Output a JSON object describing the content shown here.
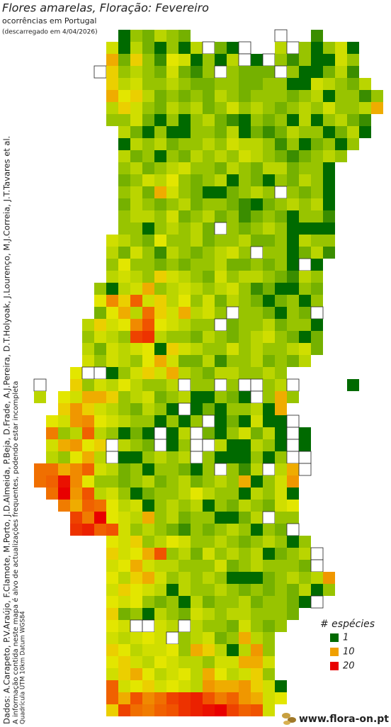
{
  "header": {
    "title": "Flores amarelas, Floração: Fevereiro",
    "subtitle": "ocorrências em Portugal",
    "note": "(descarregado em 4/04/2026)"
  },
  "side_notes": [
    "Dados: A.Carapeto, P.V.Araújo, F.Clamote, M.Porto, J.D.Almeida, P.Beja, D.Frade, A.J.Pereira, D.T.Holyoak, J.Lourenço, M.J.Correia, J.T.Tavares et al.",
    "A informação contida neste mapa é alvo de actualizações frequentes, podendo estar incompleta",
    "Quadrícula UTM 10km Datum WGS84"
  ],
  "legend": {
    "title": "# espécies",
    "items": [
      {
        "value": 1,
        "color": "#006a00"
      },
      {
        "value": 10,
        "color": "#f0a000"
      },
      {
        "value": 20,
        "color": "#e80000"
      }
    ]
  },
  "logo": "www.flora-on.pt",
  "map": {
    "rows": [
      [
        null,
        null,
        null,
        null,
        null,
        null,
        null,
        1,
        4,
        3,
        5,
        4,
        3,
        null,
        null,
        null,
        null,
        null,
        null,
        null,
        0,
        null,
        null,
        2
      ],
      [
        null,
        null,
        null,
        null,
        null,
        null,
        6,
        1,
        5,
        3,
        1,
        4,
        1,
        5,
        0,
        3,
        1,
        0,
        null,
        null,
        5,
        0,
        4,
        1,
        4,
        6,
        1
      ],
      [
        null,
        null,
        null,
        null,
        null,
        null,
        9,
        3,
        8,
        4,
        2,
        7,
        6,
        1,
        4,
        1,
        5,
        0,
        1,
        0,
        4,
        2,
        4,
        1,
        1,
        6,
        4
      ],
      [
        null,
        null,
        null,
        null,
        null,
        0,
        8,
        4,
        5,
        4,
        3,
        6,
        3,
        2,
        4,
        0,
        4,
        3,
        3,
        3,
        0,
        4,
        1,
        1,
        3,
        5,
        2
      ],
      [
        null,
        null,
        null,
        null,
        null,
        null,
        8,
        5,
        6,
        4,
        4,
        5,
        4,
        3,
        3,
        4,
        4,
        3,
        3,
        4,
        4,
        1,
        1,
        6,
        5,
        4,
        3,
        5
      ],
      [
        null,
        null,
        null,
        null,
        null,
        null,
        9,
        7,
        8,
        5,
        3,
        4,
        3,
        4,
        3,
        5,
        4,
        3,
        4,
        4,
        4,
        3,
        4,
        5,
        1,
        4,
        4,
        2,
        4
      ],
      [
        null,
        null,
        null,
        null,
        null,
        null,
        5,
        8,
        6,
        4,
        3,
        5,
        4,
        5,
        3,
        4,
        6,
        4,
        5,
        4,
        3,
        4,
        5,
        4,
        6,
        4,
        4,
        5,
        9
      ],
      [
        null,
        null,
        null,
        null,
        null,
        null,
        4,
        4,
        6,
        3,
        1,
        4,
        1,
        4,
        5,
        3,
        2,
        1,
        4,
        3,
        4,
        1,
        5,
        1,
        4,
        5,
        3,
        2
      ],
      [
        null,
        null,
        null,
        null,
        null,
        null,
        null,
        5,
        3,
        1,
        4,
        1,
        1,
        4,
        4,
        3,
        5,
        1,
        3,
        2,
        3,
        5,
        4,
        4,
        1,
        3,
        5,
        1
      ],
      [
        null,
        null,
        null,
        null,
        null,
        null,
        null,
        1,
        5,
        4,
        5,
        3,
        4,
        4,
        5,
        4,
        6,
        5,
        5,
        4,
        2,
        4,
        1,
        3,
        4,
        1,
        4
      ],
      [
        null,
        null,
        null,
        null,
        null,
        null,
        null,
        5,
        3,
        4,
        1,
        4,
        3,
        5,
        4,
        5,
        4,
        6,
        5,
        4,
        3,
        2,
        3,
        4,
        5,
        4
      ],
      [
        null,
        null,
        null,
        null,
        null,
        null,
        null,
        4,
        5,
        3,
        4,
        5,
        6,
        4,
        4,
        3,
        5,
        4,
        3,
        5,
        5,
        3,
        4,
        4,
        1
      ],
      [
        null,
        null,
        null,
        null,
        null,
        null,
        null,
        3,
        4,
        6,
        5,
        7,
        4,
        3,
        4,
        5,
        1,
        4,
        3,
        1,
        4,
        3,
        5,
        4,
        1
      ],
      [
        null,
        null,
        null,
        null,
        null,
        null,
        null,
        4,
        5,
        3,
        9,
        6,
        4,
        3,
        1,
        1,
        3,
        4,
        5,
        4,
        0,
        4,
        3,
        4,
        1
      ],
      [
        null,
        null,
        null,
        null,
        null,
        null,
        null,
        3,
        5,
        4,
        3,
        4,
        5,
        3,
        4,
        4,
        3,
        2,
        1,
        3,
        4,
        5,
        4,
        5,
        1
      ],
      [
        null,
        null,
        null,
        null,
        null,
        null,
        null,
        4,
        5,
        5,
        4,
        6,
        3,
        4,
        5,
        3,
        4,
        2,
        3,
        4,
        3,
        1,
        4,
        4,
        2
      ],
      [
        null,
        null,
        null,
        null,
        null,
        null,
        null,
        4,
        4,
        1,
        4,
        5,
        4,
        5,
        3,
        0,
        4,
        3,
        4,
        5,
        4,
        1,
        1,
        1,
        1
      ],
      [
        null,
        null,
        null,
        null,
        null,
        null,
        6,
        5,
        4,
        3,
        7,
        4,
        4,
        5,
        3,
        4,
        4,
        5,
        3,
        3,
        4,
        1,
        5,
        4,
        4
      ],
      [
        null,
        null,
        null,
        null,
        null,
        null,
        5,
        3,
        6,
        4,
        2,
        5,
        4,
        3,
        4,
        5,
        6,
        4,
        0,
        4,
        4,
        1,
        3,
        5,
        2
      ],
      [
        null,
        null,
        null,
        null,
        null,
        null,
        4,
        7,
        4,
        4,
        3,
        4,
        3,
        4,
        4,
        5,
        3,
        3,
        4,
        3,
        4,
        1,
        0,
        1
      ],
      [
        null,
        null,
        null,
        null,
        null,
        null,
        5,
        6,
        5,
        4,
        8,
        6,
        5,
        4,
        3,
        6,
        4,
        5,
        5,
        4,
        3,
        2,
        5,
        4
      ],
      [
        null,
        null,
        null,
        null,
        null,
        4,
        1,
        5,
        6,
        9,
        4,
        5,
        6,
        5,
        4,
        5,
        6,
        4,
        2,
        3,
        1,
        1,
        4,
        3
      ],
      [
        null,
        null,
        null,
        null,
        null,
        7,
        11,
        8,
        14,
        6,
        8,
        5,
        7,
        4,
        6,
        3,
        5,
        4,
        3,
        1,
        3,
        4,
        1,
        4
      ],
      [
        null,
        null,
        null,
        null,
        null,
        3,
        7,
        9,
        5,
        13,
        8,
        6,
        9,
        5,
        6,
        4,
        0,
        4,
        4,
        3,
        1,
        4,
        3,
        0
      ],
      [
        null,
        null,
        null,
        null,
        5,
        8,
        6,
        7,
        11,
        15,
        7,
        6,
        5,
        4,
        4,
        0,
        3,
        4,
        4,
        5,
        3,
        4,
        4,
        1
      ],
      [
        null,
        null,
        null,
        null,
        4,
        6,
        5,
        4,
        16,
        17,
        5,
        4,
        4,
        3,
        5,
        4,
        3,
        4,
        5,
        6,
        4,
        3,
        1,
        3
      ],
      [
        null,
        null,
        null,
        null,
        5,
        3,
        6,
        5,
        6,
        7,
        1,
        8,
        6,
        5,
        4,
        4,
        6,
        4,
        5,
        4,
        4,
        5,
        6,
        3
      ],
      [
        null,
        null,
        null,
        null,
        6,
        4,
        6,
        5,
        4,
        7,
        9,
        6,
        3,
        3,
        5,
        2,
        4,
        4,
        5,
        3,
        4,
        3,
        5
      ],
      [
        null,
        null,
        null,
        7,
        0,
        0,
        1,
        4,
        6,
        8,
        6,
        9,
        5,
        4,
        3,
        5,
        5,
        4,
        4,
        5,
        4
      ],
      [
        0,
        null,
        null,
        8,
        4,
        6,
        5,
        7,
        5,
        4,
        4,
        5,
        0,
        4,
        4,
        0,
        4,
        0,
        0,
        4,
        5,
        0,
        null,
        null,
        null,
        null,
        1
      ],
      [
        5,
        null,
        7,
        6,
        9,
        9,
        8,
        4,
        5,
        6,
        3,
        4,
        5,
        1,
        1,
        4,
        3,
        1,
        0,
        4,
        9,
        4
      ],
      [
        null,
        null,
        8,
        10,
        8,
        6,
        5,
        4,
        3,
        5,
        4,
        1,
        0,
        1,
        3,
        1,
        4,
        4,
        5,
        1,
        9
      ],
      [
        null,
        7,
        6,
        10,
        11,
        7,
        6,
        5,
        4,
        4,
        1,
        4,
        1,
        4,
        0,
        1,
        3,
        1,
        6,
        1,
        1,
        0
      ],
      [
        null,
        12,
        4,
        5,
        14,
        5,
        4,
        1,
        3,
        1,
        0,
        1,
        5,
        0,
        3,
        1,
        4,
        6,
        3,
        5,
        1,
        0,
        1
      ],
      [
        null,
        6,
        9,
        10,
        7,
        8,
        0,
        5,
        4,
        3,
        0,
        1,
        4,
        0,
        0,
        5,
        1,
        1,
        5,
        4,
        1,
        0,
        1
      ],
      [
        null,
        5,
        4,
        7,
        9,
        5,
        0,
        1,
        1,
        4,
        5,
        4,
        5,
        0,
        4,
        1,
        1,
        1,
        4,
        1,
        4,
        0,
        0
      ],
      [
        13,
        13,
        9,
        11,
        14,
        6,
        5,
        3,
        4,
        1,
        4,
        4,
        3,
        1,
        4,
        0,
        4,
        2,
        5,
        0,
        5,
        9,
        0
      ],
      [
        13,
        14,
        19,
        11,
        7,
        4,
        4,
        3,
        4,
        5,
        3,
        4,
        5,
        3,
        4,
        5,
        4,
        9,
        1,
        4,
        6,
        10
      ],
      [
        null,
        13,
        20,
        10,
        15,
        5,
        6,
        4,
        1,
        3,
        4,
        4,
        5,
        7,
        5,
        4,
        4,
        1,
        5,
        4,
        6,
        1
      ],
      [
        null,
        null,
        12,
        9,
        14,
        13,
        7,
        5,
        6,
        1,
        4,
        5,
        4,
        5,
        1,
        4,
        3,
        5,
        4,
        3,
        6,
        7
      ],
      [
        null,
        null,
        null,
        16,
        12,
        20,
        7,
        6,
        5,
        9,
        4,
        5,
        3,
        4,
        4,
        1,
        1,
        3,
        5,
        0,
        4,
        4
      ],
      [
        null,
        null,
        null,
        17,
        18,
        14,
        15,
        6,
        4,
        5,
        4,
        3,
        2,
        4,
        3,
        4,
        5,
        4,
        1,
        4,
        3,
        0
      ],
      [
        null,
        null,
        null,
        null,
        null,
        null,
        7,
        6,
        8,
        4,
        5,
        7,
        6,
        4,
        4,
        5,
        4,
        3,
        4,
        5,
        4,
        1,
        4
      ],
      [
        null,
        null,
        null,
        null,
        null,
        null,
        8,
        6,
        7,
        9,
        15,
        4,
        5,
        3,
        6,
        4,
        5,
        4,
        5,
        1,
        3,
        4,
        5,
        0
      ],
      [
        null,
        null,
        null,
        null,
        null,
        null,
        6,
        7,
        9,
        6,
        5,
        5,
        4,
        4,
        4,
        6,
        3,
        4,
        5,
        4,
        4,
        4,
        3,
        0
      ],
      [
        null,
        null,
        null,
        null,
        null,
        null,
        7,
        5,
        8,
        9,
        6,
        4,
        5,
        4,
        5,
        4,
        1,
        1,
        1,
        3,
        4,
        5,
        4,
        5,
        10
      ],
      [
        null,
        null,
        null,
        null,
        null,
        null,
        6,
        8,
        7,
        6,
        5,
        1,
        5,
        4,
        4,
        5,
        4,
        3,
        4,
        3,
        4,
        3,
        5,
        1,
        4
      ],
      [
        null,
        null,
        null,
        null,
        null,
        null,
        7,
        6,
        7,
        4,
        3,
        4,
        1,
        5,
        3,
        4,
        4,
        5,
        3,
        4,
        4,
        3,
        1,
        0
      ],
      [
        null,
        null,
        null,
        null,
        null,
        null,
        8,
        3,
        4,
        1,
        5,
        4,
        3,
        6,
        5,
        4,
        5,
        5,
        4,
        4,
        4,
        3
      ],
      [
        null,
        null,
        null,
        null,
        null,
        null,
        7,
        6,
        0,
        0,
        6,
        5,
        0,
        5,
        4,
        4,
        3,
        6,
        4,
        3,
        4
      ],
      [
        null,
        null,
        null,
        null,
        null,
        null,
        6,
        5,
        6,
        7,
        6,
        0,
        4,
        5,
        6,
        3,
        4,
        9,
        5,
        4
      ],
      [
        null,
        null,
        null,
        null,
        null,
        null,
        8,
        7,
        5,
        6,
        6,
        7,
        4,
        9,
        8,
        5,
        1,
        5,
        10,
        4
      ],
      [
        null,
        null,
        null,
        null,
        null,
        null,
        7,
        8,
        6,
        5,
        7,
        6,
        5,
        5,
        4,
        6,
        6,
        9,
        9,
        6
      ],
      [
        null,
        null,
        null,
        null,
        null,
        null,
        6,
        8,
        9,
        7,
        5,
        6,
        7,
        5,
        9,
        7,
        5,
        6,
        8,
        4
      ],
      [
        null,
        null,
        null,
        null,
        null,
        null,
        14,
        6,
        7,
        8,
        6,
        7,
        6,
        5,
        10,
        9,
        9,
        10,
        8,
        6,
        1
      ],
      [
        null,
        null,
        null,
        null,
        null,
        null,
        14,
        9,
        15,
        11,
        13,
        16,
        17,
        18,
        15,
        12,
        14,
        10,
        9,
        6,
        7
      ],
      [
        null,
        null,
        null,
        null,
        null,
        null,
        8,
        16,
        13,
        12,
        14,
        15,
        17,
        18,
        19,
        20,
        16,
        14,
        15,
        6
      ]
    ]
  }
}
